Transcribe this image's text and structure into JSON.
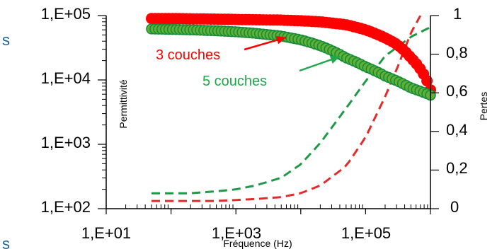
{
  "chart_data": {
    "type": "line",
    "x_scale": "log",
    "xlabel": "Fréquence (Hz)",
    "ylabel_left": "Permittivité",
    "ylabel_right": "Pertes",
    "xlim": [
      10,
      1000000
    ],
    "ylim_left": [
      100,
      100000
    ],
    "ylim_right": [
      0,
      1
    ],
    "x_tick_labels": [
      "1,E+01",
      "1,E+03",
      "1,E+05"
    ],
    "y_left_tick_labels": [
      "1,E+02",
      "1,E+03",
      "1,E+04",
      "1,E+05"
    ],
    "y_right_tick_labels": [
      "0",
      "0,2",
      "0,4",
      "0,6",
      "0,8",
      "1"
    ],
    "annotations": [
      "3 couches",
      "5 couches"
    ],
    "edge_fragments": [
      "s",
      "s"
    ],
    "colors": {
      "red_dots": "#ff0000",
      "green_dots": "#5fb034",
      "green_outline": "#138a3c",
      "red_dash": "#e32b2b",
      "green_dash": "#1e9a47",
      "red_label": "#ff0000",
      "green_label": "#1ea84a"
    },
    "series": [
      {
        "style": "markers",
        "axis": "left",
        "color": "red",
        "x": [
          50,
          100,
          200,
          500,
          1000,
          2000,
          5000,
          10000,
          20000,
          50000,
          100000,
          200000,
          300000,
          500000,
          1000000
        ],
        "y": [
          90000,
          90000,
          89000,
          88000,
          87000,
          86000,
          85000,
          83000,
          80000,
          72000,
          60000,
          45000,
          36000,
          22000,
          7000
        ]
      },
      {
        "style": "markers",
        "axis": "left",
        "color": "green",
        "x": [
          50,
          100,
          200,
          500,
          1000,
          2000,
          5000,
          10000,
          20000,
          50000,
          100000,
          200000,
          500000,
          1000000
        ],
        "y": [
          62000,
          61000,
          60000,
          58000,
          56000,
          53000,
          48000,
          42000,
          34000,
          22000,
          16000,
          11500,
          7500,
          5800
        ]
      },
      {
        "style": "dashed",
        "axis": "right",
        "color": "red",
        "x": [
          50,
          100,
          200,
          500,
          1000,
          2000,
          5000,
          10000,
          20000,
          50000,
          100000,
          200000,
          300000,
          500000,
          700000
        ],
        "y": [
          0.04,
          0.04,
          0.04,
          0.04,
          0.045,
          0.05,
          0.06,
          0.08,
          0.12,
          0.22,
          0.37,
          0.58,
          0.72,
          0.91,
          1.0
        ]
      },
      {
        "style": "dashed",
        "axis": "right",
        "color": "green",
        "x": [
          50,
          100,
          200,
          500,
          1000,
          2000,
          5000,
          10000,
          20000,
          50000,
          100000,
          200000,
          500000,
          1000000
        ],
        "y": [
          0.08,
          0.08,
          0.08,
          0.09,
          0.1,
          0.12,
          0.16,
          0.23,
          0.34,
          0.52,
          0.66,
          0.79,
          0.89,
          0.94
        ]
      }
    ]
  }
}
